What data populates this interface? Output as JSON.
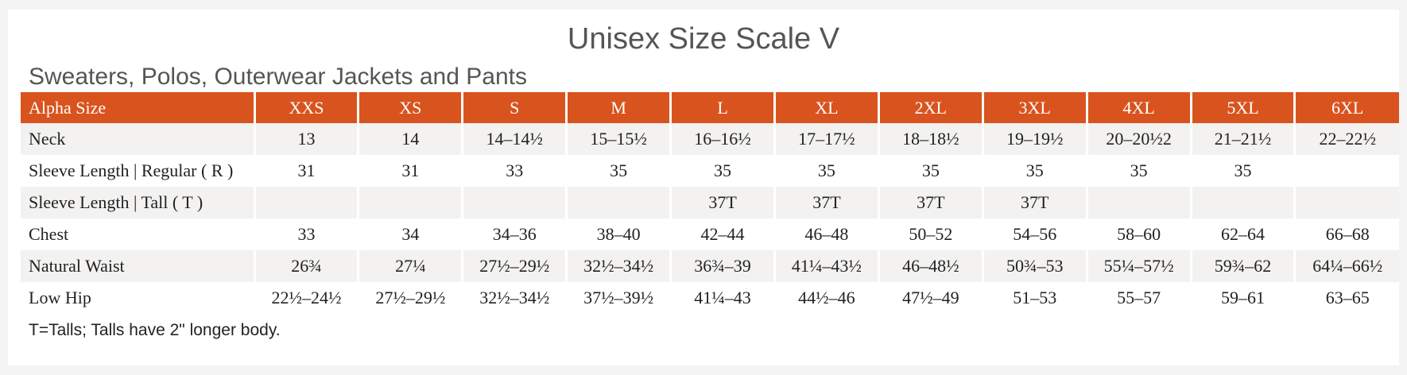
{
  "title": "Unisex Size Scale V",
  "subtitle": "Sweaters, Polos, Outerwear Jackets and Pants",
  "table": {
    "header": [
      "Alpha Size",
      "XXS",
      "XS",
      "S",
      "M",
      "L",
      "XL",
      "2XL",
      "3XL",
      "4XL",
      "5XL",
      "6XL"
    ],
    "rows": [
      [
        "Neck",
        "13",
        "14",
        "14–14½",
        "15–15½",
        "16–16½",
        "17–17½",
        "18–18½",
        "19–19½",
        "20–20½2",
        "21–21½",
        "22–22½"
      ],
      [
        "Sleeve Length | Regular ( R )",
        "31",
        "31",
        "33",
        "35",
        "35",
        "35",
        "35",
        "35",
        "35",
        "35",
        null
      ],
      [
        "Sleeve Length | Tall ( T )",
        null,
        null,
        null,
        null,
        "37T",
        "37T",
        "37T",
        "37T",
        null,
        null,
        null
      ],
      [
        "Chest",
        "33",
        "34",
        "34–36",
        "38–40",
        "42–44",
        "46–48",
        "50–52",
        "54–56",
        "58–60",
        "62–64",
        "66–68"
      ],
      [
        "Natural Waist",
        "26¾",
        "27¼",
        "27½–29½",
        "32½–34½",
        "36¾–39",
        "41¼–43½",
        "46–48½",
        "50¾–53",
        "55¼–57½",
        "59¾–62",
        "64¼–66½"
      ],
      [
        "Low Hip",
        "22½–24½",
        "27½–29½",
        "32½–34½",
        "37½–39½",
        "41¼–43",
        "44½–46",
        "47½–49",
        "51–53",
        "55–57",
        "59–61",
        "63–65"
      ]
    ]
  },
  "footnote": "T=Talls; Talls have 2\" longer body."
}
